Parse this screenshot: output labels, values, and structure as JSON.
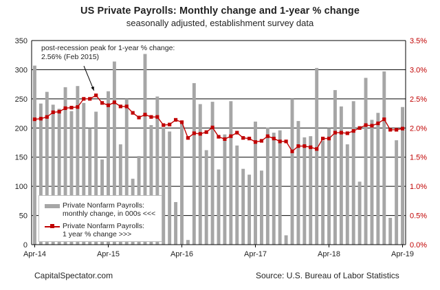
{
  "chart_data": {
    "type": "bar+line",
    "title": "US Private Payrolls: Monthly change and 1-year % change",
    "subtitle": "seasonally adjusted, establishment survey data",
    "left_axis": {
      "ylim": [
        0,
        350
      ],
      "ticks": [
        "0",
        "50",
        "100",
        "150",
        "200",
        "250",
        "300",
        "350"
      ]
    },
    "right_axis": {
      "ylim": [
        0,
        3.5
      ],
      "ticks": [
        "0.0%",
        "0.5%",
        "1.0%",
        "1.5%",
        "2.0%",
        "2.5%",
        "3.0%",
        "3.5%"
      ]
    },
    "x_tick_labels": [
      "Apr-14",
      "Apr-15",
      "Apr-16",
      "Apr-17",
      "Apr-18",
      "Apr-19"
    ],
    "x_tick_indices": [
      0,
      12,
      24,
      36,
      48,
      60
    ],
    "grid": true,
    "series": [
      {
        "name": "Private Nonfarm Payrolls: monthly change, in 000s <<<",
        "axis": "left",
        "kind": "bar",
        "color": "#a6a6a6",
        "values": [
          307,
          242,
          262,
          240,
          233,
          270,
          229,
          272,
          243,
          200,
          228,
          146,
          263,
          314,
          172,
          250,
          113,
          152,
          327,
          205,
          254,
          201,
          194,
          73,
          208,
          8,
          277,
          241,
          162,
          245,
          129,
          189,
          246,
          170,
          130,
          120,
          211,
          127,
          201,
          192,
          196,
          16,
          250,
          212,
          184,
          186,
          303,
          178,
          200,
          265,
          237,
          172,
          246,
          108,
          286,
          214,
          226,
          297,
          46,
          179,
          236
        ]
      },
      {
        "name": "Private Nonfarm Payrolls: 1 year % change >>>",
        "axis": "right",
        "kind": "line",
        "color": "#c00000",
        "values": [
          2.15,
          2.16,
          2.19,
          2.27,
          2.28,
          2.34,
          2.35,
          2.36,
          2.5,
          2.5,
          2.56,
          2.43,
          2.39,
          2.44,
          2.37,
          2.37,
          2.26,
          2.18,
          2.23,
          2.19,
          2.19,
          2.05,
          2.06,
          2.14,
          2.1,
          1.83,
          1.91,
          1.9,
          1.93,
          2.01,
          1.85,
          1.81,
          1.86,
          1.92,
          1.83,
          1.82,
          1.76,
          1.78,
          1.86,
          1.82,
          1.77,
          1.77,
          1.6,
          1.69,
          1.69,
          1.67,
          1.64,
          1.82,
          1.82,
          1.92,
          1.92,
          1.91,
          1.95,
          2.0,
          2.05,
          2.04,
          2.08,
          2.15,
          1.97,
          1.97,
          1.99
        ]
      }
    ],
    "annotation": [
      "post-recession peak for 1-year % change:",
      "2.56% (Feb 2015)"
    ],
    "annotation_index": 10,
    "legend_position": "bottom-left"
  },
  "legend": {
    "bar_label_line1": "Private Nonfarm Payrolls:",
    "bar_label_line2": "monthly change, in 000s <<<",
    "line_label_line1": "Private Nonfarm Payrolls:",
    "line_label_line2": "1 year % change >>>"
  },
  "footer": {
    "left": "CapitalSpectator.com",
    "right": "Source: U.S. Bureau of Labor Statistics"
  }
}
